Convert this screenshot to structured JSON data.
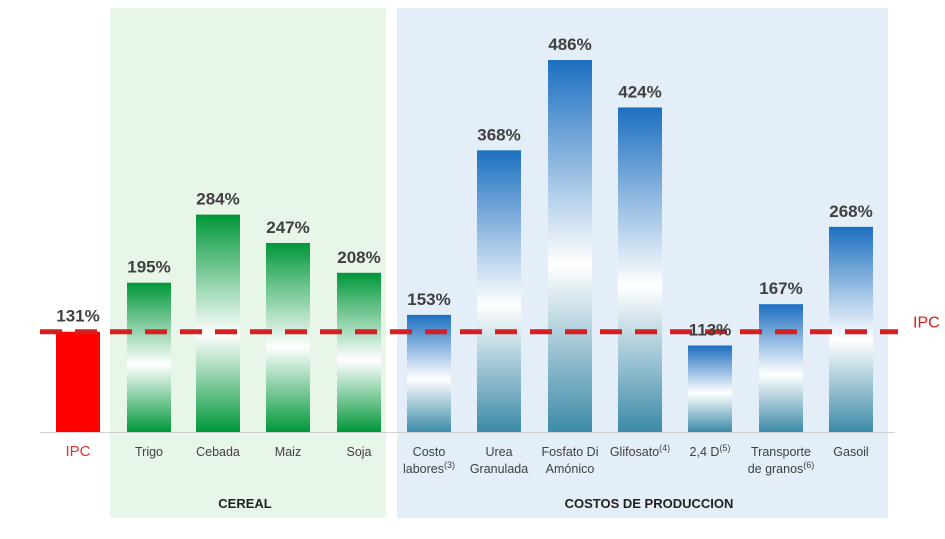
{
  "chart_data": {
    "type": "bar",
    "categories": [
      {
        "label": "IPC"
      },
      {
        "label": "Trigo"
      },
      {
        "label": "Cebada"
      },
      {
        "label": "Maiz"
      },
      {
        "label": "Soja"
      },
      {
        "label": "Costo labores",
        "lines": [
          "Costo",
          "labores"
        ],
        "sup": "(3)"
      },
      {
        "label": "Urea Granulada",
        "lines": [
          "Urea",
          "Granulada"
        ]
      },
      {
        "label": "Fosfato Di Amónico",
        "lines": [
          "Fosfato Di",
          "Amónico"
        ]
      },
      {
        "label": "Glifosato",
        "sup": "(4)"
      },
      {
        "label": "2,4 D",
        "sup": "(5)"
      },
      {
        "label": "Transporte de granos",
        "lines": [
          "Transporte",
          "de granos"
        ],
        "sup": "(6)"
      },
      {
        "label": "Gasoil"
      }
    ],
    "values": [
      131,
      195,
      284,
      247,
      208,
      153,
      368,
      486,
      424,
      113,
      167,
      268
    ],
    "value_labels": [
      "131%",
      "195%",
      "284%",
      "247%",
      "208%",
      "153%",
      "368%",
      "486%",
      "424%",
      "113%",
      "167%",
      "268%"
    ],
    "groups": [
      {
        "name": "CEREAL",
        "indices": [
          1,
          2,
          3,
          4
        ],
        "color": "#e8f6e9"
      },
      {
        "name": "COSTOS DE PRODUCCION",
        "indices": [
          5,
          6,
          7,
          8,
          9,
          10,
          11
        ],
        "color": "#e3eef8"
      }
    ],
    "bar_styles": {
      "ipc": "#ff0000",
      "cereal": [
        "#00973a",
        "#ffffff",
        "#00973a"
      ],
      "costos": [
        "#1c6fc0",
        "#ffffff",
        "#3c8aa8"
      ]
    },
    "reference_line": {
      "value": 131,
      "label": "IPC",
      "color": "#d42020",
      "style": "dashed"
    },
    "ipc_label_color": "#e03030",
    "value_label_color": "#404040",
    "ylim": [
      0,
      500
    ],
    "grid": false
  }
}
